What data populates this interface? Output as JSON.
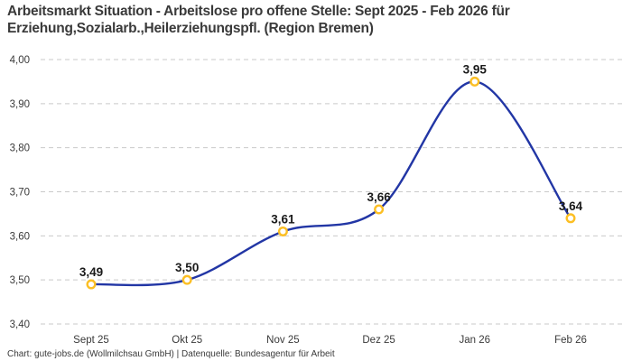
{
  "header": {
    "title_line1": "Arbeitsmarkt Situation - Arbeitslose pro offene Stelle: Sept 2025 - Feb 2026 für",
    "title_line2": "Erziehung,Sozialarb.,Heilerziehungspfl. (Region Bremen)"
  },
  "footer": {
    "credit": "Chart: gute-jobs.de (Wollmilchsau GmbH) | Datenquelle: Bundesagentur für Arbeit"
  },
  "chart_data": {
    "type": "line",
    "title": "Arbeitsmarkt Situation - Arbeitslose pro offene Stelle: Sept 2025 - Feb 2026 für Erziehung,Sozialarb.,Heilerziehungspfl. (Region Bremen)",
    "categories": [
      "Sept 25",
      "Okt 25",
      "Nov 25",
      "Dez 25",
      "Jan 26",
      "Feb 26"
    ],
    "values": [
      3.49,
      3.5,
      3.61,
      3.66,
      3.95,
      3.64
    ],
    "value_labels": [
      "3,49",
      "3,50",
      "3,61",
      "3,66",
      "3,95",
      "3,64"
    ],
    "ylim": [
      3.4,
      4.0
    ],
    "yticks": [
      3.4,
      3.5,
      3.6,
      3.7,
      3.8,
      3.9,
      4.0
    ],
    "ytick_labels": [
      "3,40",
      "3,50",
      "3,60",
      "3,70",
      "3,80",
      "3,90",
      "4,00"
    ],
    "xlabel": "",
    "ylabel": "",
    "grid": "horizontal-dashed",
    "legend": "none",
    "line_style": "smooth-spline",
    "colors": {
      "line": "#2236a5",
      "marker_ring": "#fcbf24",
      "marker_fill": "#ffffff",
      "grid": "#c9c9c9",
      "data_label": "#1a1a1a",
      "tick_label": "#3a3a3a",
      "title": "#3a3a3a"
    }
  }
}
